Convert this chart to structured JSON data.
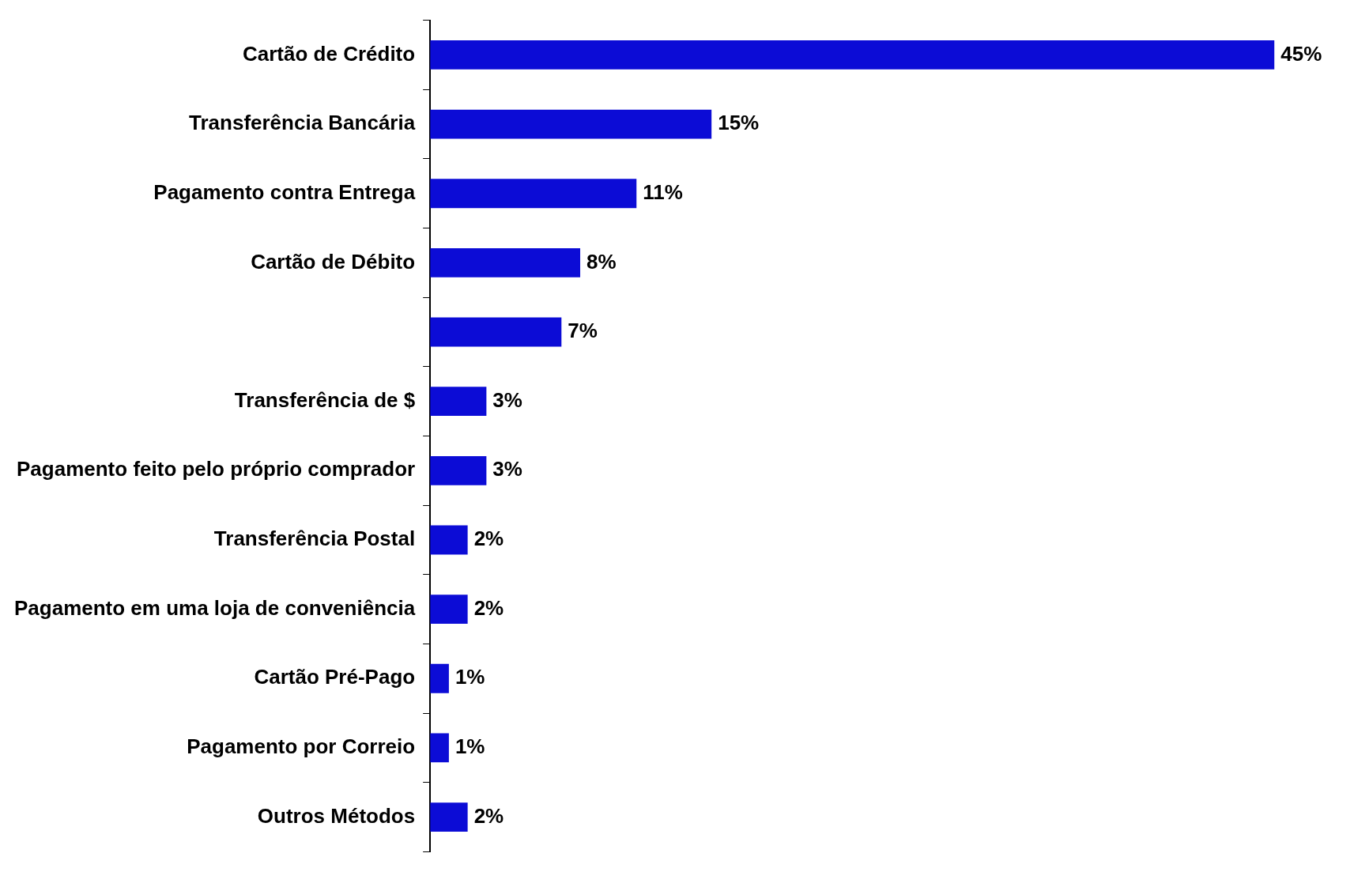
{
  "chart_data": {
    "type": "bar",
    "orientation": "horizontal",
    "categories": [
      "Cartão de Crédito",
      "Transferência Bancária",
      "Pagamento contra Entrega",
      "Cartão de Débito",
      null,
      "Transferência de $",
      "Pagamento feito pelo próprio comprador",
      "Transferência Postal",
      "Pagamento em uma loja de conveniência",
      "Cartão Pré-Pago",
      "Pagamento por Correio",
      "Outros Métodos"
    ],
    "values": [
      45,
      15,
      11,
      8,
      7,
      3,
      3,
      2,
      2,
      1,
      1,
      2
    ],
    "value_labels": [
      "45%",
      "15%",
      "11%",
      "8%",
      "7%",
      "3%",
      "3%",
      "2%",
      "2%",
      "1%",
      "1%",
      "2%"
    ],
    "color": "#0c0cd6",
    "grid": false,
    "legend": false
  }
}
